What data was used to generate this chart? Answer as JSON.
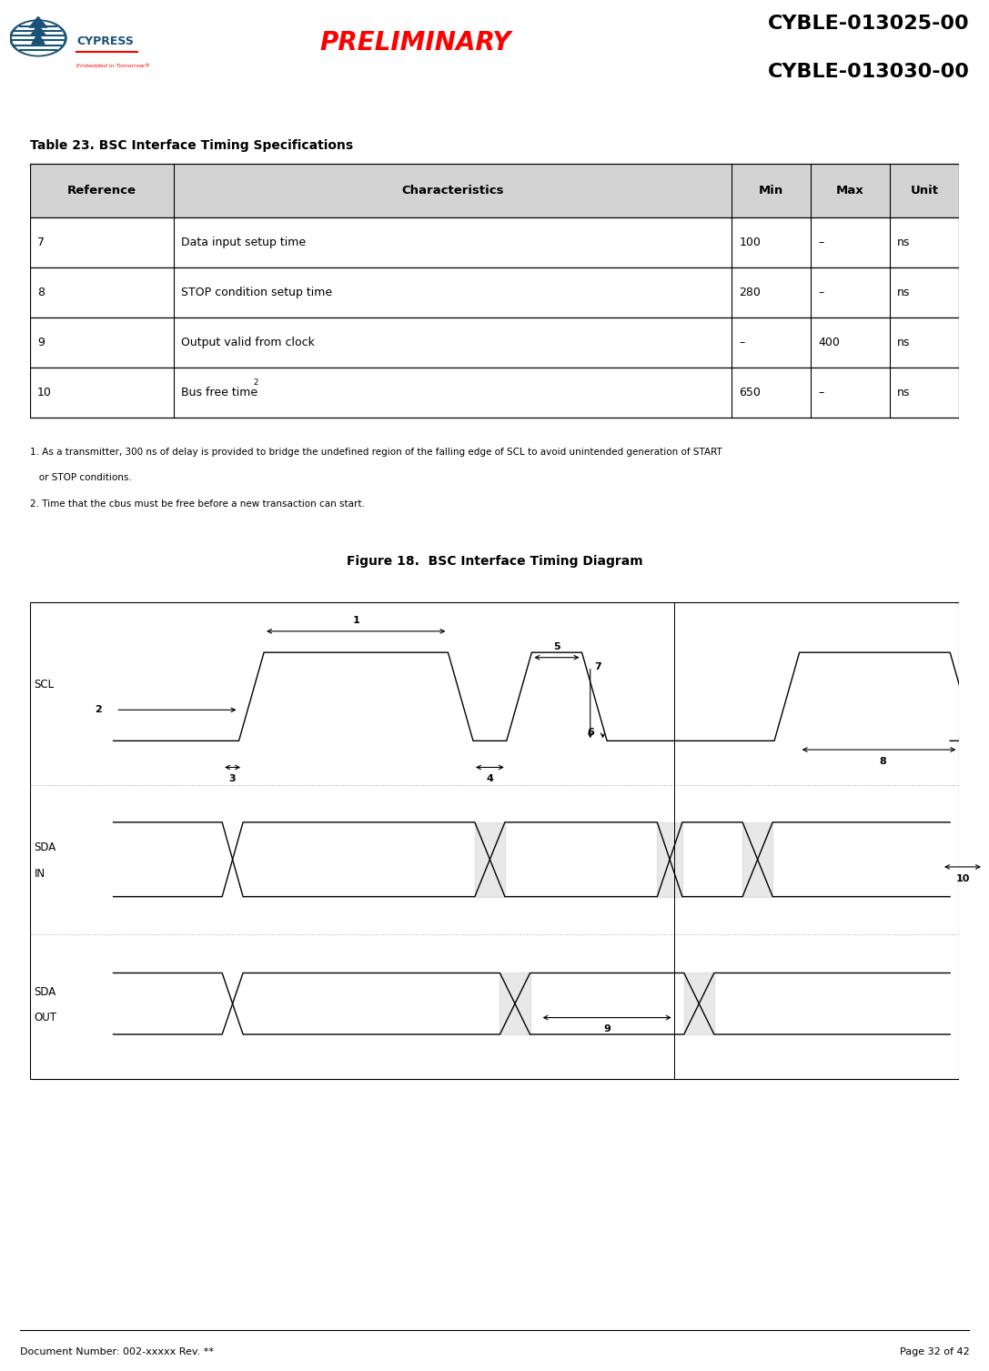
{
  "page_title_left": "PRELIMINARY",
  "page_title_right1": "CYBLE-013025-00",
  "page_title_right2": "CYBLE-013030-00",
  "table_title": "Table 23. BSC Interface Timing Specifications",
  "table_headers": [
    "Reference",
    "Characteristics",
    "Min",
    "Max",
    "Unit"
  ],
  "table_rows": [
    [
      "7",
      "Data input setup time",
      "100",
      "–",
      "ns"
    ],
    [
      "8",
      "STOP condition setup time",
      "280",
      "–",
      "ns"
    ],
    [
      "9",
      "Output valid from clock",
      "–",
      "400",
      "ns"
    ],
    [
      "10",
      "Bus free time²",
      "650",
      "–",
      "ns"
    ]
  ],
  "footnote1": "1. As a transmitter, 300 ns of delay is provided to bridge the undefined region of the falling edge of SCL to avoid unintended generation of START",
  "footnote1b": "   or STOP conditions.",
  "footnote2": "2. Time that the cbus must be free before a new transaction can start.",
  "figure_caption": "Figure 18.  BSC Interface Timing Diagram",
  "footer_left": "Document Number: 002-xxxxx Rev. **",
  "footer_right": "Page 32 of 42",
  "header_bar_color": "#1a3a6b",
  "preliminary_color": "#ff0000",
  "title_color": "#000000",
  "table_header_bg": "#d3d3d3",
  "table_border_color": "#000000",
  "diagram_border_color": "#000000",
  "diagram_bg": "#ffffff"
}
